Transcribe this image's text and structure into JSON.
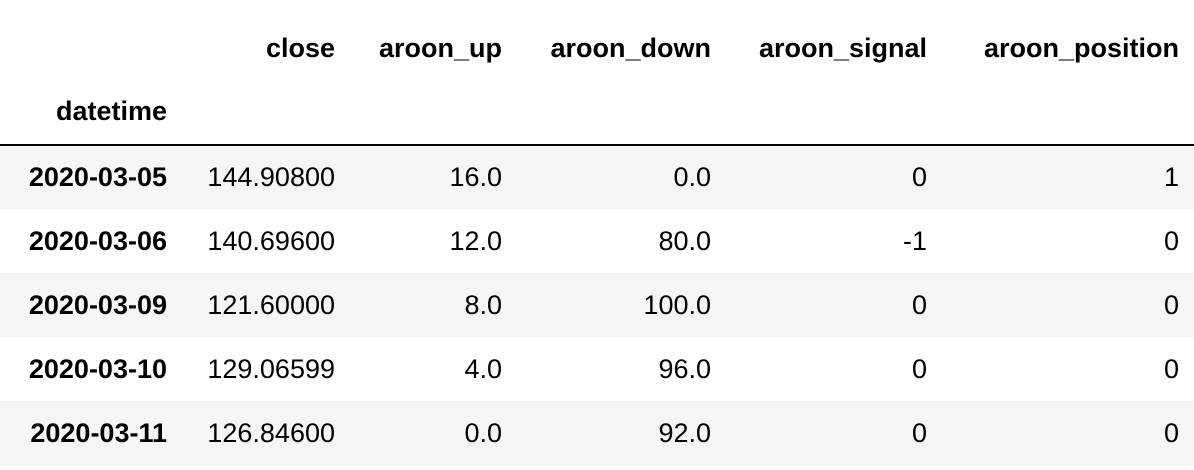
{
  "table": {
    "columns": [
      "close",
      "aroon_up",
      "aroon_down",
      "aroon_signal",
      "aroon_position"
    ],
    "index_name": "datetime",
    "rows": [
      {
        "index": "2020-03-05",
        "close": "144.90800",
        "aroon_up": "16.0",
        "aroon_down": "0.0",
        "aroon_signal": "0",
        "aroon_position": "1"
      },
      {
        "index": "2020-03-06",
        "close": "140.69600",
        "aroon_up": "12.0",
        "aroon_down": "80.0",
        "aroon_signal": "-1",
        "aroon_position": "0"
      },
      {
        "index": "2020-03-09",
        "close": "121.60000",
        "aroon_up": "8.0",
        "aroon_down": "100.0",
        "aroon_signal": "0",
        "aroon_position": "0"
      },
      {
        "index": "2020-03-10",
        "close": "129.06599",
        "aroon_up": "4.0",
        "aroon_down": "96.0",
        "aroon_signal": "0",
        "aroon_position": "0"
      },
      {
        "index": "2020-03-11",
        "close": "126.84600",
        "aroon_up": "0.0",
        "aroon_down": "92.0",
        "aroon_signal": "0",
        "aroon_position": "0"
      }
    ]
  },
  "colors": {
    "stripe": "#f5f5f5",
    "background": "#ffffff",
    "text": "#000000",
    "rule": "#000000"
  }
}
